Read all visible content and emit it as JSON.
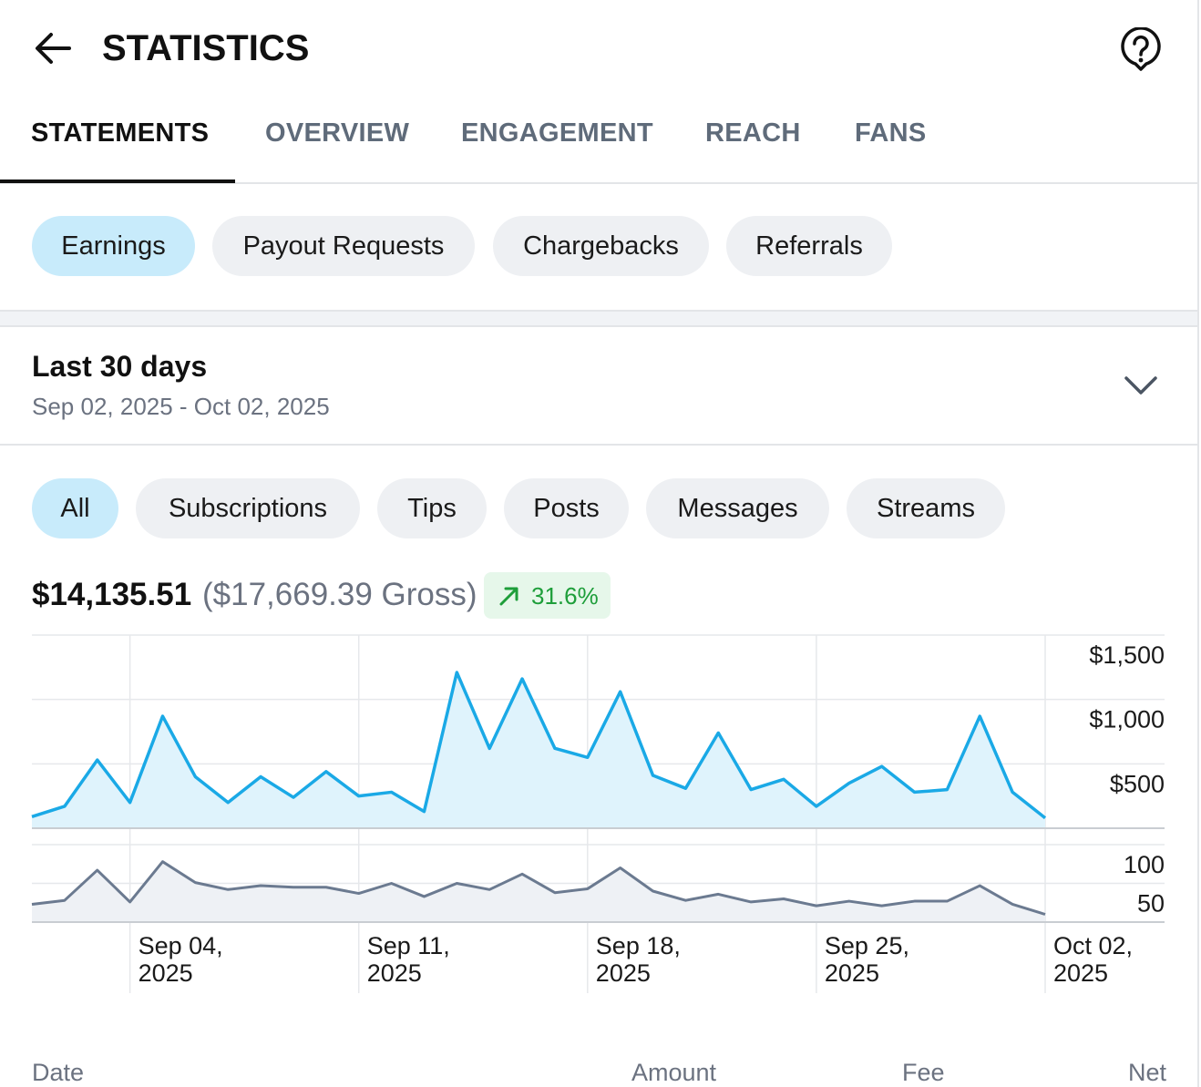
{
  "header": {
    "title": "STATISTICS"
  },
  "tabs": [
    "STATEMENTS",
    "OVERVIEW",
    "ENGAGEMENT",
    "REACH",
    "FANS"
  ],
  "chips": [
    "Earnings",
    "Payout Requests",
    "Chargebacks",
    "Referrals"
  ],
  "range": {
    "title": "Last 30 days",
    "dates": "Sep 02, 2025 - Oct 02, 2025"
  },
  "filters": [
    "All",
    "Subscriptions",
    "Tips",
    "Posts",
    "Messages",
    "Streams"
  ],
  "summary": {
    "net": "$14,135.51",
    "gross": "($17,669.39 Gross)",
    "change": "31.6%"
  },
  "chart_data": [
    {
      "type": "line",
      "color": "#1aa9e6",
      "fill": "#dff3fc",
      "values": [
        90,
        170,
        530,
        200,
        870,
        400,
        200,
        400,
        240,
        440,
        250,
        280,
        130,
        1210,
        620,
        1160,
        620,
        550,
        1060,
        410,
        310,
        740,
        300,
        380,
        170,
        350,
        480,
        280,
        300,
        870,
        280,
        80
      ],
      "ylim": [
        0,
        1500
      ],
      "yticks": [
        {
          "value": 500,
          "label": "$500"
        },
        {
          "value": 1000,
          "label": "$1,000"
        },
        {
          "value": 1500,
          "label": "$1,500"
        }
      ],
      "grid": true
    },
    {
      "type": "line",
      "color": "#6b7a90",
      "fill": "#eef1f5",
      "categories": [
        null,
        null,
        null,
        "Sep 04, 2025",
        null,
        null,
        null,
        null,
        null,
        null,
        "Sep 11, 2025",
        null,
        null,
        null,
        null,
        null,
        null,
        "Sep 18, 2025",
        null,
        null,
        null,
        null,
        null,
        null,
        "Sep 25, 2025",
        null,
        null,
        null,
        null,
        null,
        null,
        "Oct 02, 2025"
      ],
      "values": [
        23,
        28,
        67,
        26,
        78,
        51,
        42,
        47,
        45,
        45,
        37,
        50,
        33,
        50,
        42,
        62,
        38,
        43,
        70,
        40,
        28,
        36,
        26,
        30,
        21,
        27,
        21,
        27,
        27,
        47,
        23,
        10
      ],
      "ylim": [
        0,
        100
      ],
      "yticks": [
        50,
        100
      ],
      "grid": true
    }
  ],
  "table": {
    "columns": [
      "Date",
      "Amount",
      "Fee",
      "Net"
    ]
  }
}
